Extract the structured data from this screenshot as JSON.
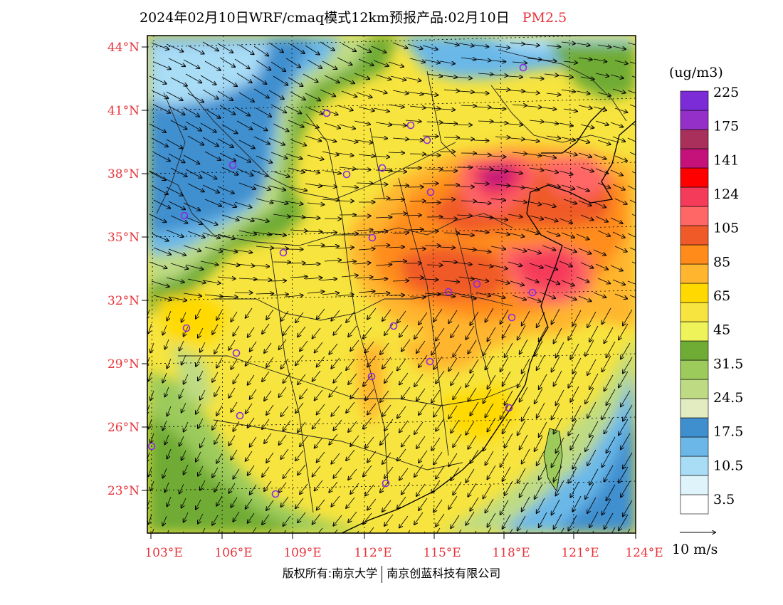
{
  "header": {
    "title": "2024年02月10日WRF/cmaq模式12km预报产品:02月10日",
    "pollutant": "PM2.5"
  },
  "map": {
    "lat_labels": [
      "44°N",
      "41°N",
      "38°N",
      "35°N",
      "32°N",
      "29°N",
      "26°N",
      "23°N"
    ],
    "lon_labels": [
      "103°E",
      "106°E",
      "109°E",
      "112°E",
      "115°E",
      "118°E",
      "121°E",
      "124°E"
    ]
  },
  "colorbar": {
    "unit": "(ug/m3)",
    "colors": [
      "#ffffff",
      "#dff3fb",
      "#a9dcf5",
      "#6bb8e8",
      "#3f8fcf",
      "#e2ecc0",
      "#bedb84",
      "#9ccb5c",
      "#6fac36",
      "#eef35a",
      "#f7e43e",
      "#ffd900",
      "#ffb52e",
      "#ff8c1a",
      "#f05a28",
      "#ff6666",
      "#f53b5a",
      "#ff0000",
      "#c4127a",
      "#a8305a",
      "#9430c8",
      "#7b2cd6"
    ],
    "labels": [
      "3.5",
      "10.5",
      "17.5",
      "24.5",
      "31.5",
      "45",
      "65",
      "85",
      "105",
      "124",
      "141",
      "175",
      "225"
    ]
  },
  "wind_legend": {
    "label": "10 m/s"
  },
  "footer": {
    "copyright_left": "版权所有:南京大学",
    "copyright_right": "南京创蓝科技有限公司"
  }
}
